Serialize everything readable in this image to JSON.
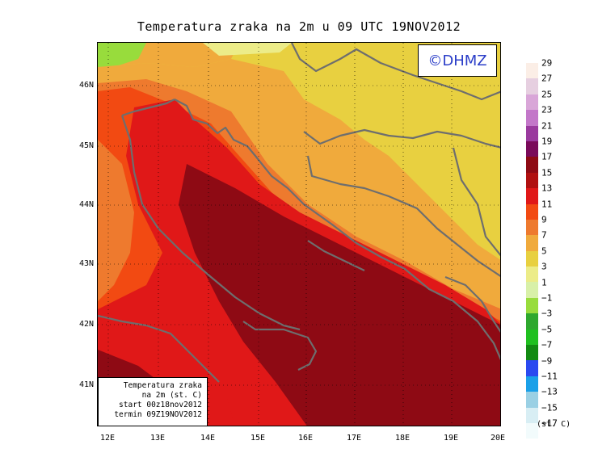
{
  "title": "Temperatura zraka na 2m u 09 UTC 19NOV2012",
  "logo": "©DHMZ",
  "info_box": {
    "line1": "Temperatura zraka",
    "line2": "na 2m (st. C)",
    "line3": "start 00z18nov2012",
    "line4": "termin 09Z19NOV2012"
  },
  "latitude_labels": [
    "46N",
    "45N",
    "44N",
    "43N",
    "42N",
    "41N"
  ],
  "longitude_labels": [
    "12E",
    "13E",
    "14E",
    "15E",
    "16E",
    "17E",
    "18E",
    "19E",
    "20E"
  ],
  "legend": {
    "units": "(st. C)",
    "labels": [
      "29",
      "27",
      "25",
      "23",
      "21",
      "19",
      "17",
      "15",
      "13",
      "11",
      "9",
      "7",
      "5",
      "3",
      "1",
      "−1",
      "−3",
      "−5",
      "−7",
      "−9",
      "−11",
      "−13",
      "−15",
      "−17"
    ],
    "colors": [
      "#fbeee6",
      "#e6cfe0",
      "#d9a6d8",
      "#c377c9",
      "#9a3a9e",
      "#7a0a5a",
      "#8e0a14",
      "#b01010",
      "#e01818",
      "#f24a12",
      "#ee7a2e",
      "#f0aa3c",
      "#e8d040",
      "#ecec88",
      "#d8f0a8",
      "#98dc3c",
      "#2ea82e",
      "#1fc01f",
      "#128a12",
      "#2a4af0",
      "#1aa0e8",
      "#9ad0e4",
      "#d8eef4",
      "#f2fbfc"
    ]
  },
  "colors": {
    "deep": "#8e0a14",
    "red": "#e01818",
    "orangered": "#f24a12",
    "orange": "#ee7a2e",
    "lightorange": "#f0aa3c",
    "yellow": "#e8d040",
    "paleyellow": "#ecec88",
    "green": "#98dc3c",
    "border": "#6e6e6e"
  }
}
